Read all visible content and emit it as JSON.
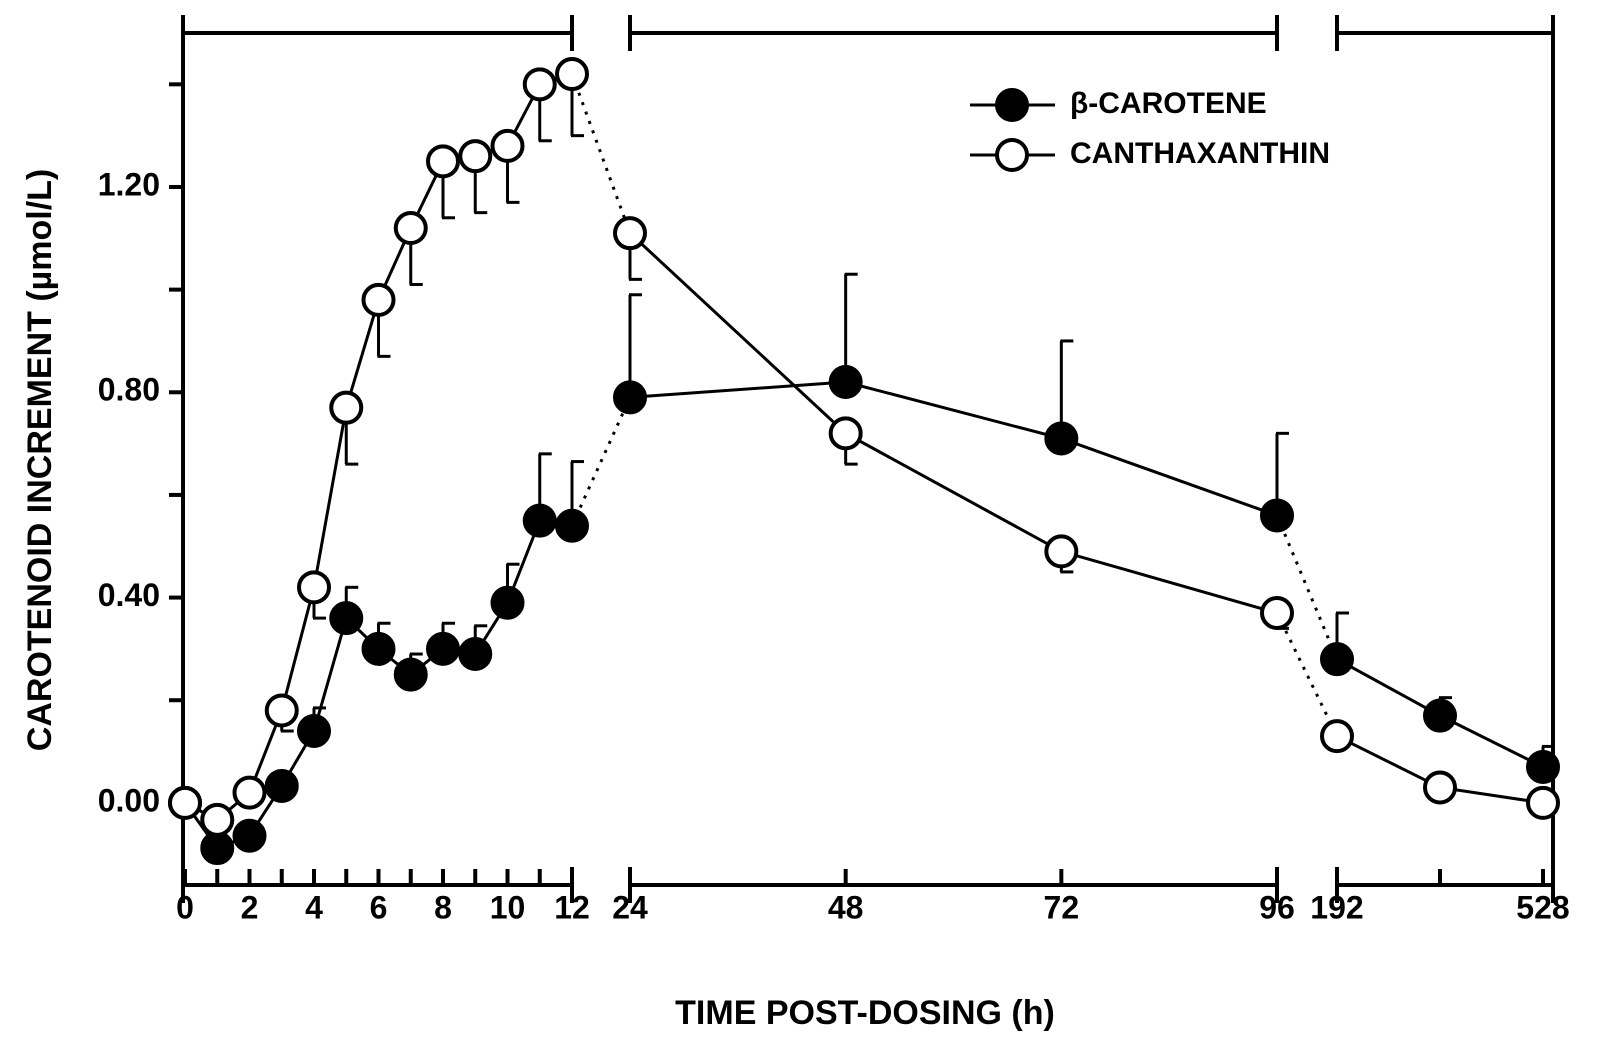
{
  "chart_data": {
    "type": "line",
    "xlabel": "TIME POST-DOSING (h)",
    "ylabel": "CAROTENOID INCREMENT  (µmol/L)",
    "x": [
      0,
      1,
      2,
      3,
      4,
      5,
      6,
      7,
      8,
      9,
      10,
      11,
      12,
      24,
      48,
      72,
      96,
      192,
      360,
      528
    ],
    "xbreaks": [
      [
        0,
        12
      ],
      [
        24,
        96
      ],
      [
        192,
        528
      ]
    ],
    "xticks": [
      0,
      2,
      4,
      6,
      8,
      10,
      12,
      24,
      48,
      72,
      96,
      192,
      528
    ],
    "xminor_ticks": [
      1,
      3,
      5,
      7,
      9,
      11,
      360
    ],
    "ylim": [
      -0.16,
      1.5
    ],
    "yticks": [
      {
        "value": 0,
        "label": "0.00"
      },
      {
        "value": 0.4,
        "label": "0.40"
      },
      {
        "value": 0.8,
        "label": "0.80"
      },
      {
        "value": 1.2,
        "label": "1.20"
      }
    ],
    "yminor_ticks": [
      0.2,
      0.6,
      1.0,
      1.4
    ],
    "legend": "upper right",
    "series": [
      {
        "name": "β-CAROTENE",
        "color": "#000000",
        "marker": "filled",
        "error_direction": "up",
        "values": [
          0,
          -0.088,
          -0.064,
          0.033,
          0.14,
          0.36,
          0.3,
          0.25,
          0.3,
          0.29,
          0.39,
          0.55,
          0.54,
          0.79,
          0.82,
          0.71,
          0.56,
          0.28,
          0.17,
          0.07
        ],
        "errors": [
          null,
          null,
          null,
          null,
          0.045,
          0.06,
          0.05,
          0.04,
          0.05,
          0.055,
          0.075,
          0.13,
          0.125,
          0.2,
          0.21,
          0.19,
          0.16,
          0.09,
          0.035,
          0.04
        ]
      },
      {
        "name": "CANTHAXANTHIN",
        "color": "#000000",
        "marker": "open",
        "error_direction": "down",
        "values": [
          0,
          -0.033,
          0.02,
          0.18,
          0.42,
          0.77,
          0.98,
          1.12,
          1.25,
          1.26,
          1.28,
          1.4,
          1.42,
          1.11,
          0.72,
          0.49,
          0.37,
          0.13,
          0.03,
          0
        ],
        "errors": [
          null,
          null,
          null,
          0.04,
          0.06,
          0.11,
          0.11,
          0.11,
          0.11,
          0.11,
          0.11,
          0.11,
          0.12,
          0.09,
          0.06,
          0.04,
          0.03,
          null,
          null,
          null
        ]
      }
    ]
  }
}
